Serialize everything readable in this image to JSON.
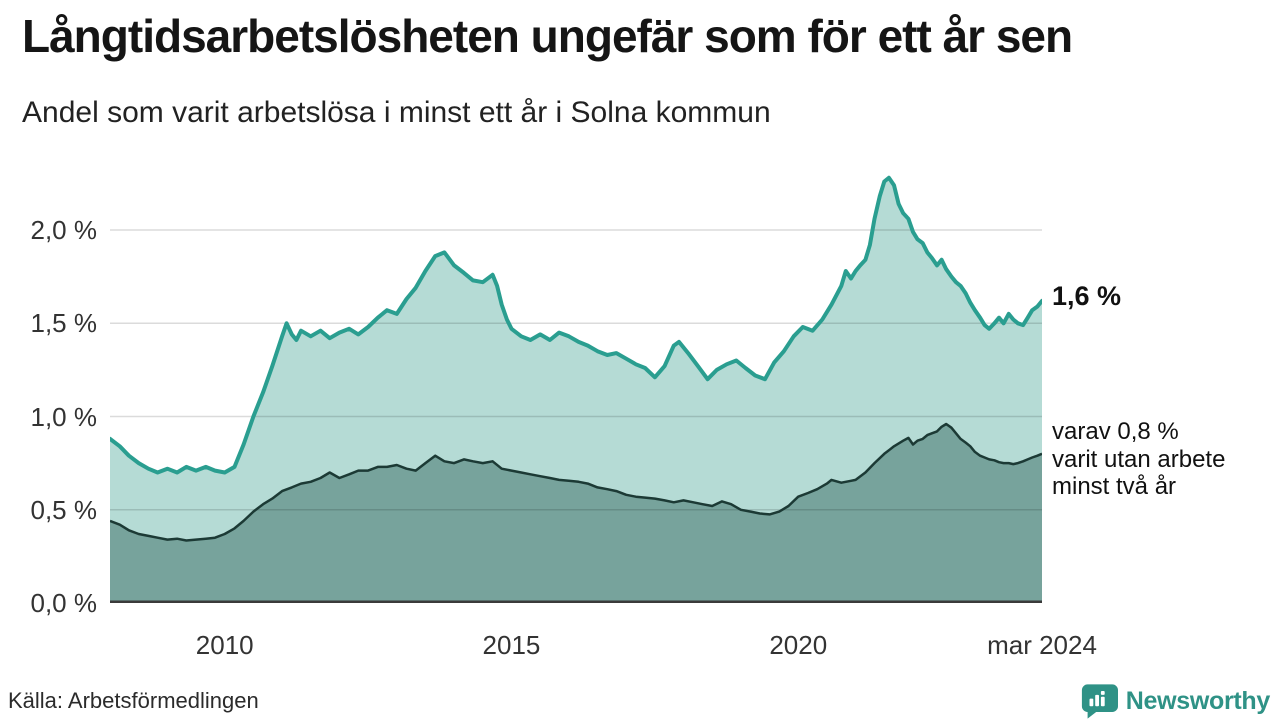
{
  "header": {
    "title": "Långtidsarbetslösheten ungefär som för ett år sen",
    "subtitle": "Andel som varit arbetslösa i minst ett år i Solna kommun"
  },
  "footer": {
    "source": "Källa: Arbetsförmedlingen",
    "brand": "Newsworthy"
  },
  "colors": {
    "accent_line": "#2a9e90",
    "accent_fill": "#b5dbd5",
    "dark_line": "#1c3a35",
    "dark_fill": "#77a39c",
    "grid": "rgba(0,0,0,0.14)",
    "axis": "#3a3a3a",
    "brand": "#2f9286",
    "tick_text": "#333333"
  },
  "chart_data": {
    "type": "area",
    "unit": "%",
    "xlim": [
      2008.0,
      2024.25
    ],
    "ylim": [
      0,
      2.35
    ],
    "grid": "horizontal",
    "y_ticks": [
      {
        "label": "0,0 %",
        "value": 0.0
      },
      {
        "label": "0,5 %",
        "value": 0.5
      },
      {
        "label": "1,0 %",
        "value": 1.0
      },
      {
        "label": "1,5 %",
        "value": 1.5
      },
      {
        "label": "2,0 %",
        "value": 2.0
      }
    ],
    "x_ticks": [
      {
        "label": "2010",
        "year": 2010
      },
      {
        "label": "2015",
        "year": 2015
      },
      {
        "label": "2020",
        "year": 2020
      },
      {
        "label": "mar 2024",
        "year": 2024.25
      }
    ],
    "annotations": {
      "latest_total": "1,6 %",
      "secondary_lines": [
        "varav 0,8 %",
        "varit utan arbete",
        "minst två år"
      ]
    },
    "series": [
      {
        "name": "Arbetslösa minst ett år",
        "latest_value": 1.6,
        "points": [
          [
            2008.0,
            0.88
          ],
          [
            2008.17,
            0.84
          ],
          [
            2008.33,
            0.79
          ],
          [
            2008.5,
            0.75
          ],
          [
            2008.67,
            0.72
          ],
          [
            2008.83,
            0.7
          ],
          [
            2009.0,
            0.72
          ],
          [
            2009.17,
            0.7
          ],
          [
            2009.33,
            0.73
          ],
          [
            2009.5,
            0.71
          ],
          [
            2009.67,
            0.73
          ],
          [
            2009.83,
            0.71
          ],
          [
            2010.0,
            0.7
          ],
          [
            2010.17,
            0.73
          ],
          [
            2010.33,
            0.85
          ],
          [
            2010.5,
            1.0
          ],
          [
            2010.67,
            1.13
          ],
          [
            2010.83,
            1.27
          ],
          [
            2011.0,
            1.43
          ],
          [
            2011.08,
            1.5
          ],
          [
            2011.17,
            1.44
          ],
          [
            2011.25,
            1.41
          ],
          [
            2011.33,
            1.46
          ],
          [
            2011.5,
            1.43
          ],
          [
            2011.67,
            1.46
          ],
          [
            2011.83,
            1.42
          ],
          [
            2012.0,
            1.45
          ],
          [
            2012.17,
            1.47
          ],
          [
            2012.33,
            1.44
          ],
          [
            2012.5,
            1.48
          ],
          [
            2012.67,
            1.53
          ],
          [
            2012.83,
            1.57
          ],
          [
            2013.0,
            1.55
          ],
          [
            2013.17,
            1.63
          ],
          [
            2013.33,
            1.69
          ],
          [
            2013.5,
            1.78
          ],
          [
            2013.67,
            1.86
          ],
          [
            2013.83,
            1.88
          ],
          [
            2014.0,
            1.81
          ],
          [
            2014.17,
            1.77
          ],
          [
            2014.33,
            1.73
          ],
          [
            2014.5,
            1.72
          ],
          [
            2014.67,
            1.76
          ],
          [
            2014.75,
            1.7
          ],
          [
            2014.83,
            1.6
          ],
          [
            2014.92,
            1.52
          ],
          [
            2015.0,
            1.47
          ],
          [
            2015.17,
            1.43
          ],
          [
            2015.33,
            1.41
          ],
          [
            2015.5,
            1.44
          ],
          [
            2015.67,
            1.41
          ],
          [
            2015.83,
            1.45
          ],
          [
            2016.0,
            1.43
          ],
          [
            2016.17,
            1.4
          ],
          [
            2016.33,
            1.38
          ],
          [
            2016.5,
            1.35
          ],
          [
            2016.67,
            1.33
          ],
          [
            2016.83,
            1.34
          ],
          [
            2017.0,
            1.31
          ],
          [
            2017.17,
            1.28
          ],
          [
            2017.33,
            1.26
          ],
          [
            2017.5,
            1.21
          ],
          [
            2017.67,
            1.27
          ],
          [
            2017.83,
            1.38
          ],
          [
            2017.92,
            1.4
          ],
          [
            2018.08,
            1.34
          ],
          [
            2018.25,
            1.27
          ],
          [
            2018.42,
            1.2
          ],
          [
            2018.58,
            1.25
          ],
          [
            2018.75,
            1.28
          ],
          [
            2018.92,
            1.3
          ],
          [
            2019.08,
            1.26
          ],
          [
            2019.25,
            1.22
          ],
          [
            2019.42,
            1.2
          ],
          [
            2019.58,
            1.29
          ],
          [
            2019.75,
            1.35
          ],
          [
            2019.92,
            1.43
          ],
          [
            2020.08,
            1.48
          ],
          [
            2020.25,
            1.46
          ],
          [
            2020.42,
            1.52
          ],
          [
            2020.58,
            1.6
          ],
          [
            2020.75,
            1.7
          ],
          [
            2020.83,
            1.78
          ],
          [
            2020.92,
            1.74
          ],
          [
            2021.0,
            1.78
          ],
          [
            2021.08,
            1.81
          ],
          [
            2021.17,
            1.84
          ],
          [
            2021.25,
            1.92
          ],
          [
            2021.33,
            2.06
          ],
          [
            2021.42,
            2.18
          ],
          [
            2021.5,
            2.26
          ],
          [
            2021.58,
            2.28
          ],
          [
            2021.67,
            2.24
          ],
          [
            2021.75,
            2.14
          ],
          [
            2021.83,
            2.09
          ],
          [
            2021.92,
            2.06
          ],
          [
            2022.0,
            1.99
          ],
          [
            2022.08,
            1.95
          ],
          [
            2022.17,
            1.93
          ],
          [
            2022.25,
            1.88
          ],
          [
            2022.33,
            1.85
          ],
          [
            2022.42,
            1.81
          ],
          [
            2022.5,
            1.84
          ],
          [
            2022.58,
            1.79
          ],
          [
            2022.67,
            1.75
          ],
          [
            2022.75,
            1.72
          ],
          [
            2022.83,
            1.7
          ],
          [
            2022.92,
            1.66
          ],
          [
            2023.0,
            1.61
          ],
          [
            2023.08,
            1.57
          ],
          [
            2023.17,
            1.53
          ],
          [
            2023.25,
            1.49
          ],
          [
            2023.33,
            1.47
          ],
          [
            2023.42,
            1.5
          ],
          [
            2023.5,
            1.53
          ],
          [
            2023.58,
            1.5
          ],
          [
            2023.67,
            1.55
          ],
          [
            2023.75,
            1.52
          ],
          [
            2023.83,
            1.5
          ],
          [
            2023.92,
            1.49
          ],
          [
            2024.0,
            1.53
          ],
          [
            2024.08,
            1.57
          ],
          [
            2024.17,
            1.59
          ],
          [
            2024.25,
            1.62
          ]
        ]
      },
      {
        "name": "Varav utan arbete minst två år",
        "latest_value": 0.8,
        "points": [
          [
            2008.0,
            0.44
          ],
          [
            2008.17,
            0.42
          ],
          [
            2008.33,
            0.39
          ],
          [
            2008.5,
            0.37
          ],
          [
            2008.67,
            0.36
          ],
          [
            2008.83,
            0.35
          ],
          [
            2009.0,
            0.34
          ],
          [
            2009.17,
            0.345
          ],
          [
            2009.33,
            0.335
          ],
          [
            2009.5,
            0.34
          ],
          [
            2009.67,
            0.345
          ],
          [
            2009.83,
            0.35
          ],
          [
            2010.0,
            0.37
          ],
          [
            2010.17,
            0.4
          ],
          [
            2010.33,
            0.44
          ],
          [
            2010.5,
            0.49
          ],
          [
            2010.67,
            0.53
          ],
          [
            2010.83,
            0.56
          ],
          [
            2011.0,
            0.6
          ],
          [
            2011.17,
            0.62
          ],
          [
            2011.33,
            0.64
          ],
          [
            2011.5,
            0.65
          ],
          [
            2011.67,
            0.67
          ],
          [
            2011.83,
            0.7
          ],
          [
            2012.0,
            0.67
          ],
          [
            2012.17,
            0.69
          ],
          [
            2012.33,
            0.71
          ],
          [
            2012.5,
            0.71
          ],
          [
            2012.67,
            0.73
          ],
          [
            2012.83,
            0.73
          ],
          [
            2013.0,
            0.74
          ],
          [
            2013.17,
            0.72
          ],
          [
            2013.33,
            0.71
          ],
          [
            2013.5,
            0.75
          ],
          [
            2013.67,
            0.79
          ],
          [
            2013.83,
            0.76
          ],
          [
            2014.0,
            0.75
          ],
          [
            2014.17,
            0.77
          ],
          [
            2014.33,
            0.76
          ],
          [
            2014.5,
            0.75
          ],
          [
            2014.67,
            0.76
          ],
          [
            2014.83,
            0.72
          ],
          [
            2015.0,
            0.71
          ],
          [
            2015.17,
            0.7
          ],
          [
            2015.33,
            0.69
          ],
          [
            2015.5,
            0.68
          ],
          [
            2015.67,
            0.67
          ],
          [
            2015.83,
            0.66
          ],
          [
            2016.0,
            0.655
          ],
          [
            2016.17,
            0.65
          ],
          [
            2016.33,
            0.64
          ],
          [
            2016.5,
            0.62
          ],
          [
            2016.67,
            0.61
          ],
          [
            2016.83,
            0.6
          ],
          [
            2017.0,
            0.58
          ],
          [
            2017.17,
            0.57
          ],
          [
            2017.33,
            0.565
          ],
          [
            2017.5,
            0.56
          ],
          [
            2017.67,
            0.55
          ],
          [
            2017.83,
            0.54
          ],
          [
            2018.0,
            0.55
          ],
          [
            2018.17,
            0.54
          ],
          [
            2018.33,
            0.53
          ],
          [
            2018.5,
            0.52
          ],
          [
            2018.67,
            0.545
          ],
          [
            2018.83,
            0.53
          ],
          [
            2019.0,
            0.5
          ],
          [
            2019.17,
            0.49
          ],
          [
            2019.33,
            0.48
          ],
          [
            2019.5,
            0.475
          ],
          [
            2019.67,
            0.49
          ],
          [
            2019.83,
            0.52
          ],
          [
            2020.0,
            0.57
          ],
          [
            2020.17,
            0.59
          ],
          [
            2020.33,
            0.61
          ],
          [
            2020.5,
            0.64
          ],
          [
            2020.58,
            0.66
          ],
          [
            2020.75,
            0.645
          ],
          [
            2020.92,
            0.655
          ],
          [
            2021.0,
            0.66
          ],
          [
            2021.17,
            0.7
          ],
          [
            2021.33,
            0.75
          ],
          [
            2021.5,
            0.8
          ],
          [
            2021.67,
            0.84
          ],
          [
            2021.83,
            0.87
          ],
          [
            2021.92,
            0.885
          ],
          [
            2022.0,
            0.85
          ],
          [
            2022.08,
            0.87
          ],
          [
            2022.17,
            0.88
          ],
          [
            2022.25,
            0.9
          ],
          [
            2022.33,
            0.91
          ],
          [
            2022.42,
            0.92
          ],
          [
            2022.5,
            0.945
          ],
          [
            2022.58,
            0.96
          ],
          [
            2022.67,
            0.94
          ],
          [
            2022.75,
            0.91
          ],
          [
            2022.83,
            0.88
          ],
          [
            2022.92,
            0.86
          ],
          [
            2023.0,
            0.84
          ],
          [
            2023.08,
            0.81
          ],
          [
            2023.17,
            0.79
          ],
          [
            2023.25,
            0.78
          ],
          [
            2023.33,
            0.77
          ],
          [
            2023.42,
            0.765
          ],
          [
            2023.5,
            0.755
          ],
          [
            2023.58,
            0.75
          ],
          [
            2023.67,
            0.75
          ],
          [
            2023.75,
            0.745
          ],
          [
            2023.83,
            0.75
          ],
          [
            2023.92,
            0.76
          ],
          [
            2024.0,
            0.77
          ],
          [
            2024.08,
            0.78
          ],
          [
            2024.17,
            0.79
          ],
          [
            2024.25,
            0.8
          ]
        ]
      }
    ]
  }
}
